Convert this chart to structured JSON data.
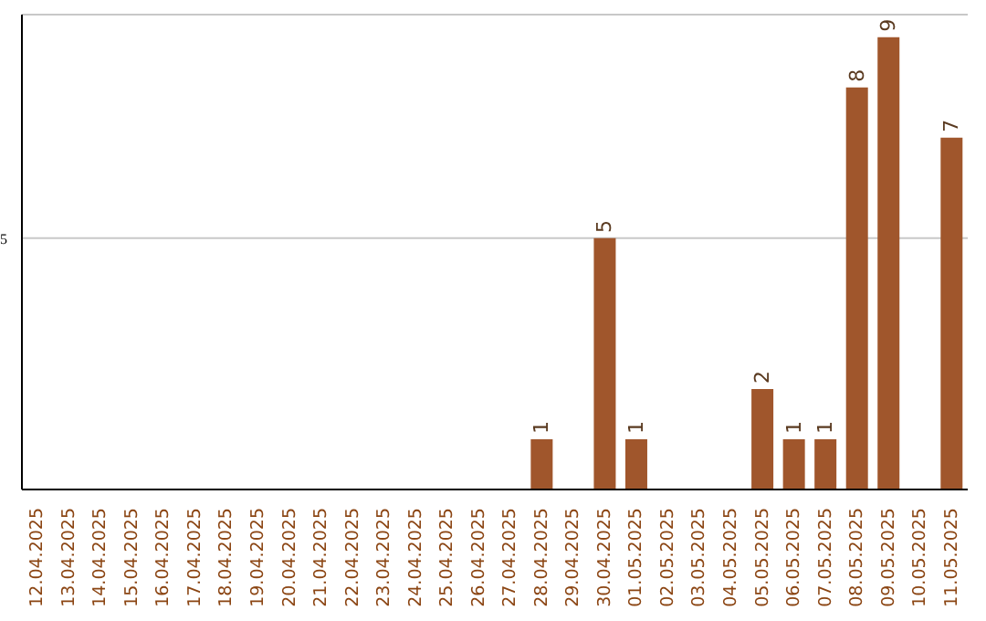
{
  "chart_data": {
    "type": "bar",
    "categories": [
      "12.04.2025",
      "13.04.2025",
      "14.04.2025",
      "15.04.2025",
      "16.04.2025",
      "17.04.2025",
      "18.04.2025",
      "19.04.2025",
      "20.04.2025",
      "21.04.2025",
      "22.04.2025",
      "23.04.2025",
      "24.04.2025",
      "25.04.2025",
      "26.04.2025",
      "27.04.2025",
      "28.04.2025",
      "29.04.2025",
      "30.04.2025",
      "01.05.2025",
      "02.05.2025",
      "03.05.2025",
      "04.05.2025",
      "05.05.2025",
      "06.05.2025",
      "07.05.2025",
      "08.05.2025",
      "09.05.2025",
      "10.05.2025",
      "11.05.2025"
    ],
    "values": [
      null,
      null,
      null,
      null,
      null,
      null,
      null,
      null,
      null,
      null,
      null,
      null,
      null,
      null,
      null,
      null,
      1,
      null,
      5,
      1,
      null,
      null,
      null,
      2,
      1,
      1,
      8,
      9,
      null,
      7
    ],
    "color": "#a0562c",
    "ylim": [
      0,
      9.45
    ],
    "yticks": [
      5
    ],
    "grid": "y",
    "data_labels": true
  }
}
